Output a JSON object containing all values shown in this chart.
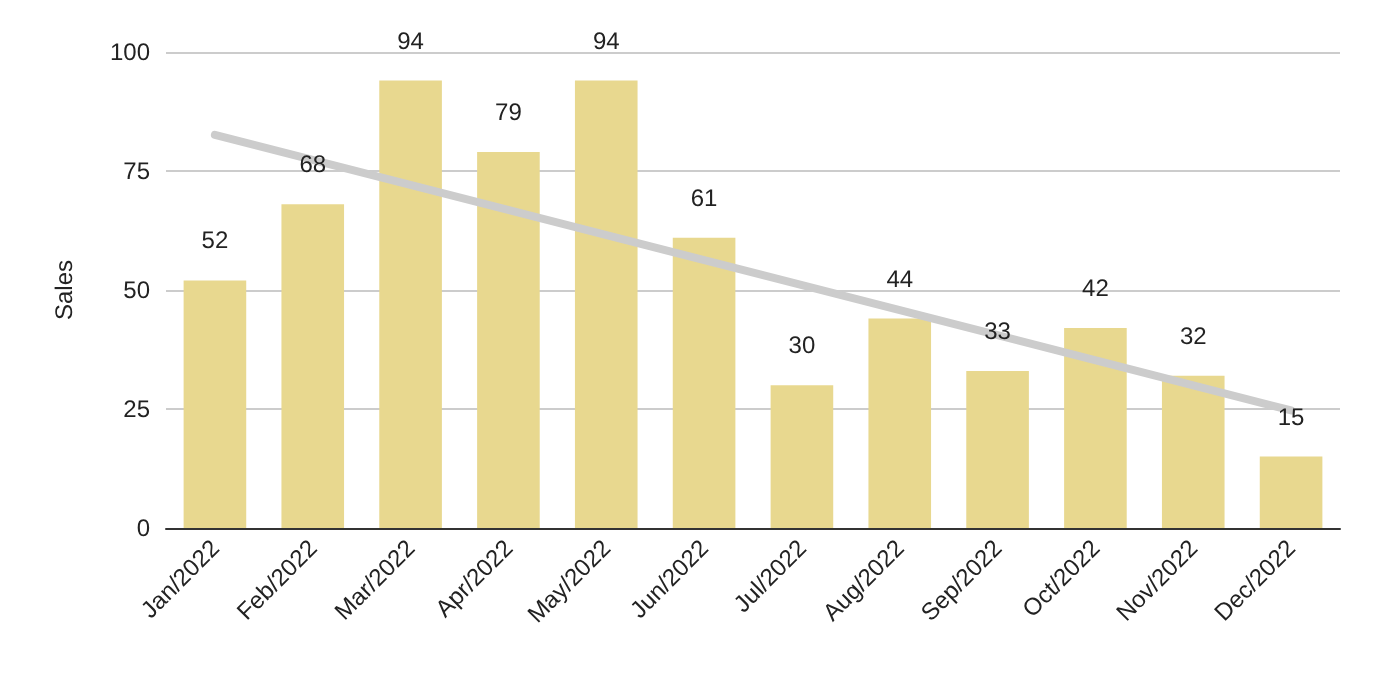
{
  "chart_data": {
    "type": "bar",
    "ylabel": "Sales",
    "categories": [
      "Jan/2022",
      "Feb/2022",
      "Mar/2022",
      "Apr/2022",
      "May/2022",
      "Jun/2022",
      "Jul/2022",
      "Aug/2022",
      "Sep/2022",
      "Oct/2022",
      "Nov/2022",
      "Dec/2022"
    ],
    "series": [
      {
        "color": "#e8d88f",
        "values": [
          52,
          68,
          94,
          79,
          94,
          61,
          30,
          44,
          33,
          42,
          32,
          15
        ],
        "value_labels": [
          "52",
          "68",
          "94",
          "79",
          "94",
          "61",
          "30",
          "44",
          "33",
          "42",
          "32",
          "15"
        ]
      },
      {
        "type": "line",
        "color": "#cccccc",
        "x": [
          "Jan/2022",
          "Dec/2022"
        ],
        "values": [
          82.6,
          24.7
        ]
      }
    ],
    "ylim": [
      0,
      100
    ],
    "yticks": [
      0,
      25,
      50,
      75,
      100
    ],
    "grid": "y",
    "marker": "none"
  }
}
